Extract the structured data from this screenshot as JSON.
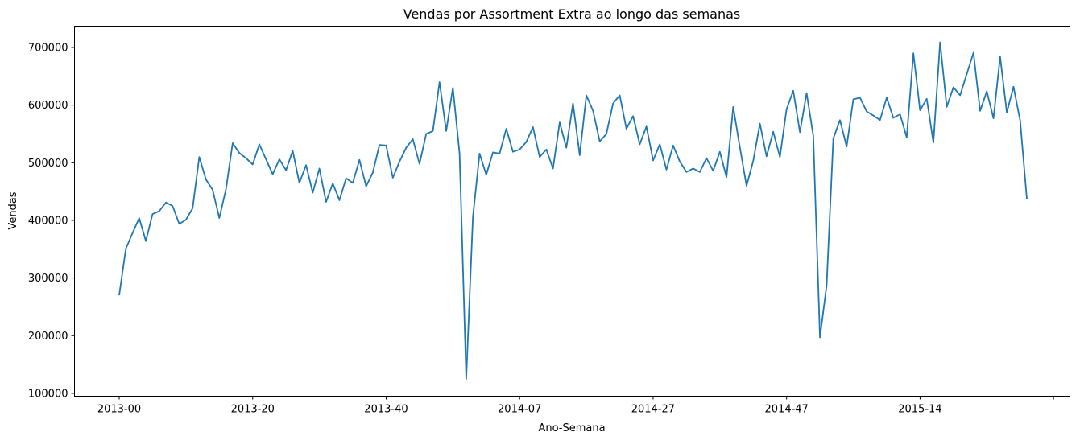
{
  "chart_data": {
    "type": "line",
    "title": "Vendas por Assortment Extra ao longo das semanas",
    "xlabel": "Ano-Semana",
    "ylabel": "Vendas",
    "x_tick_labels": [
      "2013-00",
      "2013-20",
      "2013-40",
      "2014-07",
      "2014-27",
      "2014-47",
      "2015-14",
      ""
    ],
    "y_ticks": [
      100000,
      200000,
      300000,
      400000,
      500000,
      600000,
      700000
    ],
    "y_tick_labels": [
      "100000",
      "200000",
      "300000",
      "400000",
      "500000",
      "600000",
      "700000"
    ],
    "ylim": [
      95000,
      737000
    ],
    "grid": false,
    "legend": "none",
    "series": [
      {
        "color": "#1f77b4",
        "values": [
          270000,
          351000,
          378000,
          404000,
          364000,
          411000,
          416000,
          431000,
          425000,
          394000,
          401000,
          421000,
          510000,
          471000,
          453000,
          404000,
          454000,
          534000,
          517000,
          508000,
          497000,
          532000,
          506000,
          480000,
          506000,
          487000,
          521000,
          465000,
          496000,
          448000,
          490000,
          432000,
          464000,
          435000,
          473000,
          465000,
          505000,
          459000,
          483000,
          531000,
          530000,
          474000,
          502000,
          526000,
          541000,
          498000,
          550000,
          555000,
          640000,
          555000,
          630000,
          516000,
          125000,
          406000,
          516000,
          479000,
          518000,
          516000,
          559000,
          519000,
          523000,
          536000,
          562000,
          510000,
          523000,
          490000,
          570000,
          526000,
          603000,
          513000,
          617000,
          590000,
          537000,
          550000,
          603000,
          617000,
          559000,
          581000,
          532000,
          563000,
          504000,
          532000,
          488000,
          530000,
          502000,
          484000,
          490000,
          484000,
          508000,
          486000,
          519000,
          475000,
          597000,
          527000,
          460000,
          503000,
          568000,
          511000,
          554000,
          510000,
          593000,
          625000,
          553000,
          621000,
          547000,
          197000,
          287000,
          542000,
          574000,
          528000,
          610000,
          613000,
          589000,
          582000,
          574000,
          613000,
          578000,
          584000,
          544000,
          690000,
          591000,
          611000,
          535000,
          709000,
          597000,
          631000,
          617000,
          654000,
          691000,
          590000,
          624000,
          577000,
          684000,
          587000,
          632000,
          573000,
          437000
        ]
      }
    ]
  }
}
